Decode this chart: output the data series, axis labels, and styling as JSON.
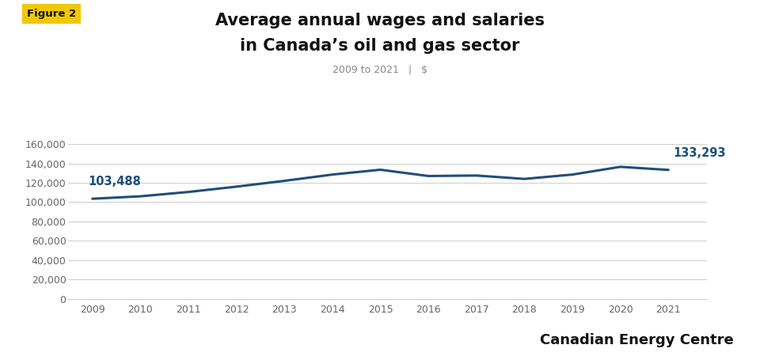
{
  "years": [
    2009,
    2010,
    2011,
    2012,
    2013,
    2014,
    2015,
    2016,
    2017,
    2018,
    2019,
    2020,
    2021
  ],
  "values": [
    103488,
    106000,
    110500,
    116000,
    122000,
    128500,
    133500,
    127000,
    127500,
    124000,
    128500,
    136500,
    133293
  ],
  "line_color": "#1f4e79",
  "line_width": 2.2,
  "title_line1": "Average annual wages and salaries",
  "title_line2": "in Canada’s oil and gas sector",
  "subtitle": "2009 to 2021   |   $",
  "figure2_label": "Figure 2",
  "figure2_bg": "#f0c800",
  "first_label": "103,488",
  "last_label": "133,293",
  "ylabel_ticks": [
    0,
    20000,
    40000,
    60000,
    80000,
    100000,
    120000,
    140000,
    160000
  ],
  "ylim": [
    0,
    175000
  ],
  "label_color": "#1f4e79",
  "watermark": "Canadian Energy Centre",
  "bg_color": "#ffffff",
  "grid_color": "#cccccc",
  "tick_color": "#666666"
}
